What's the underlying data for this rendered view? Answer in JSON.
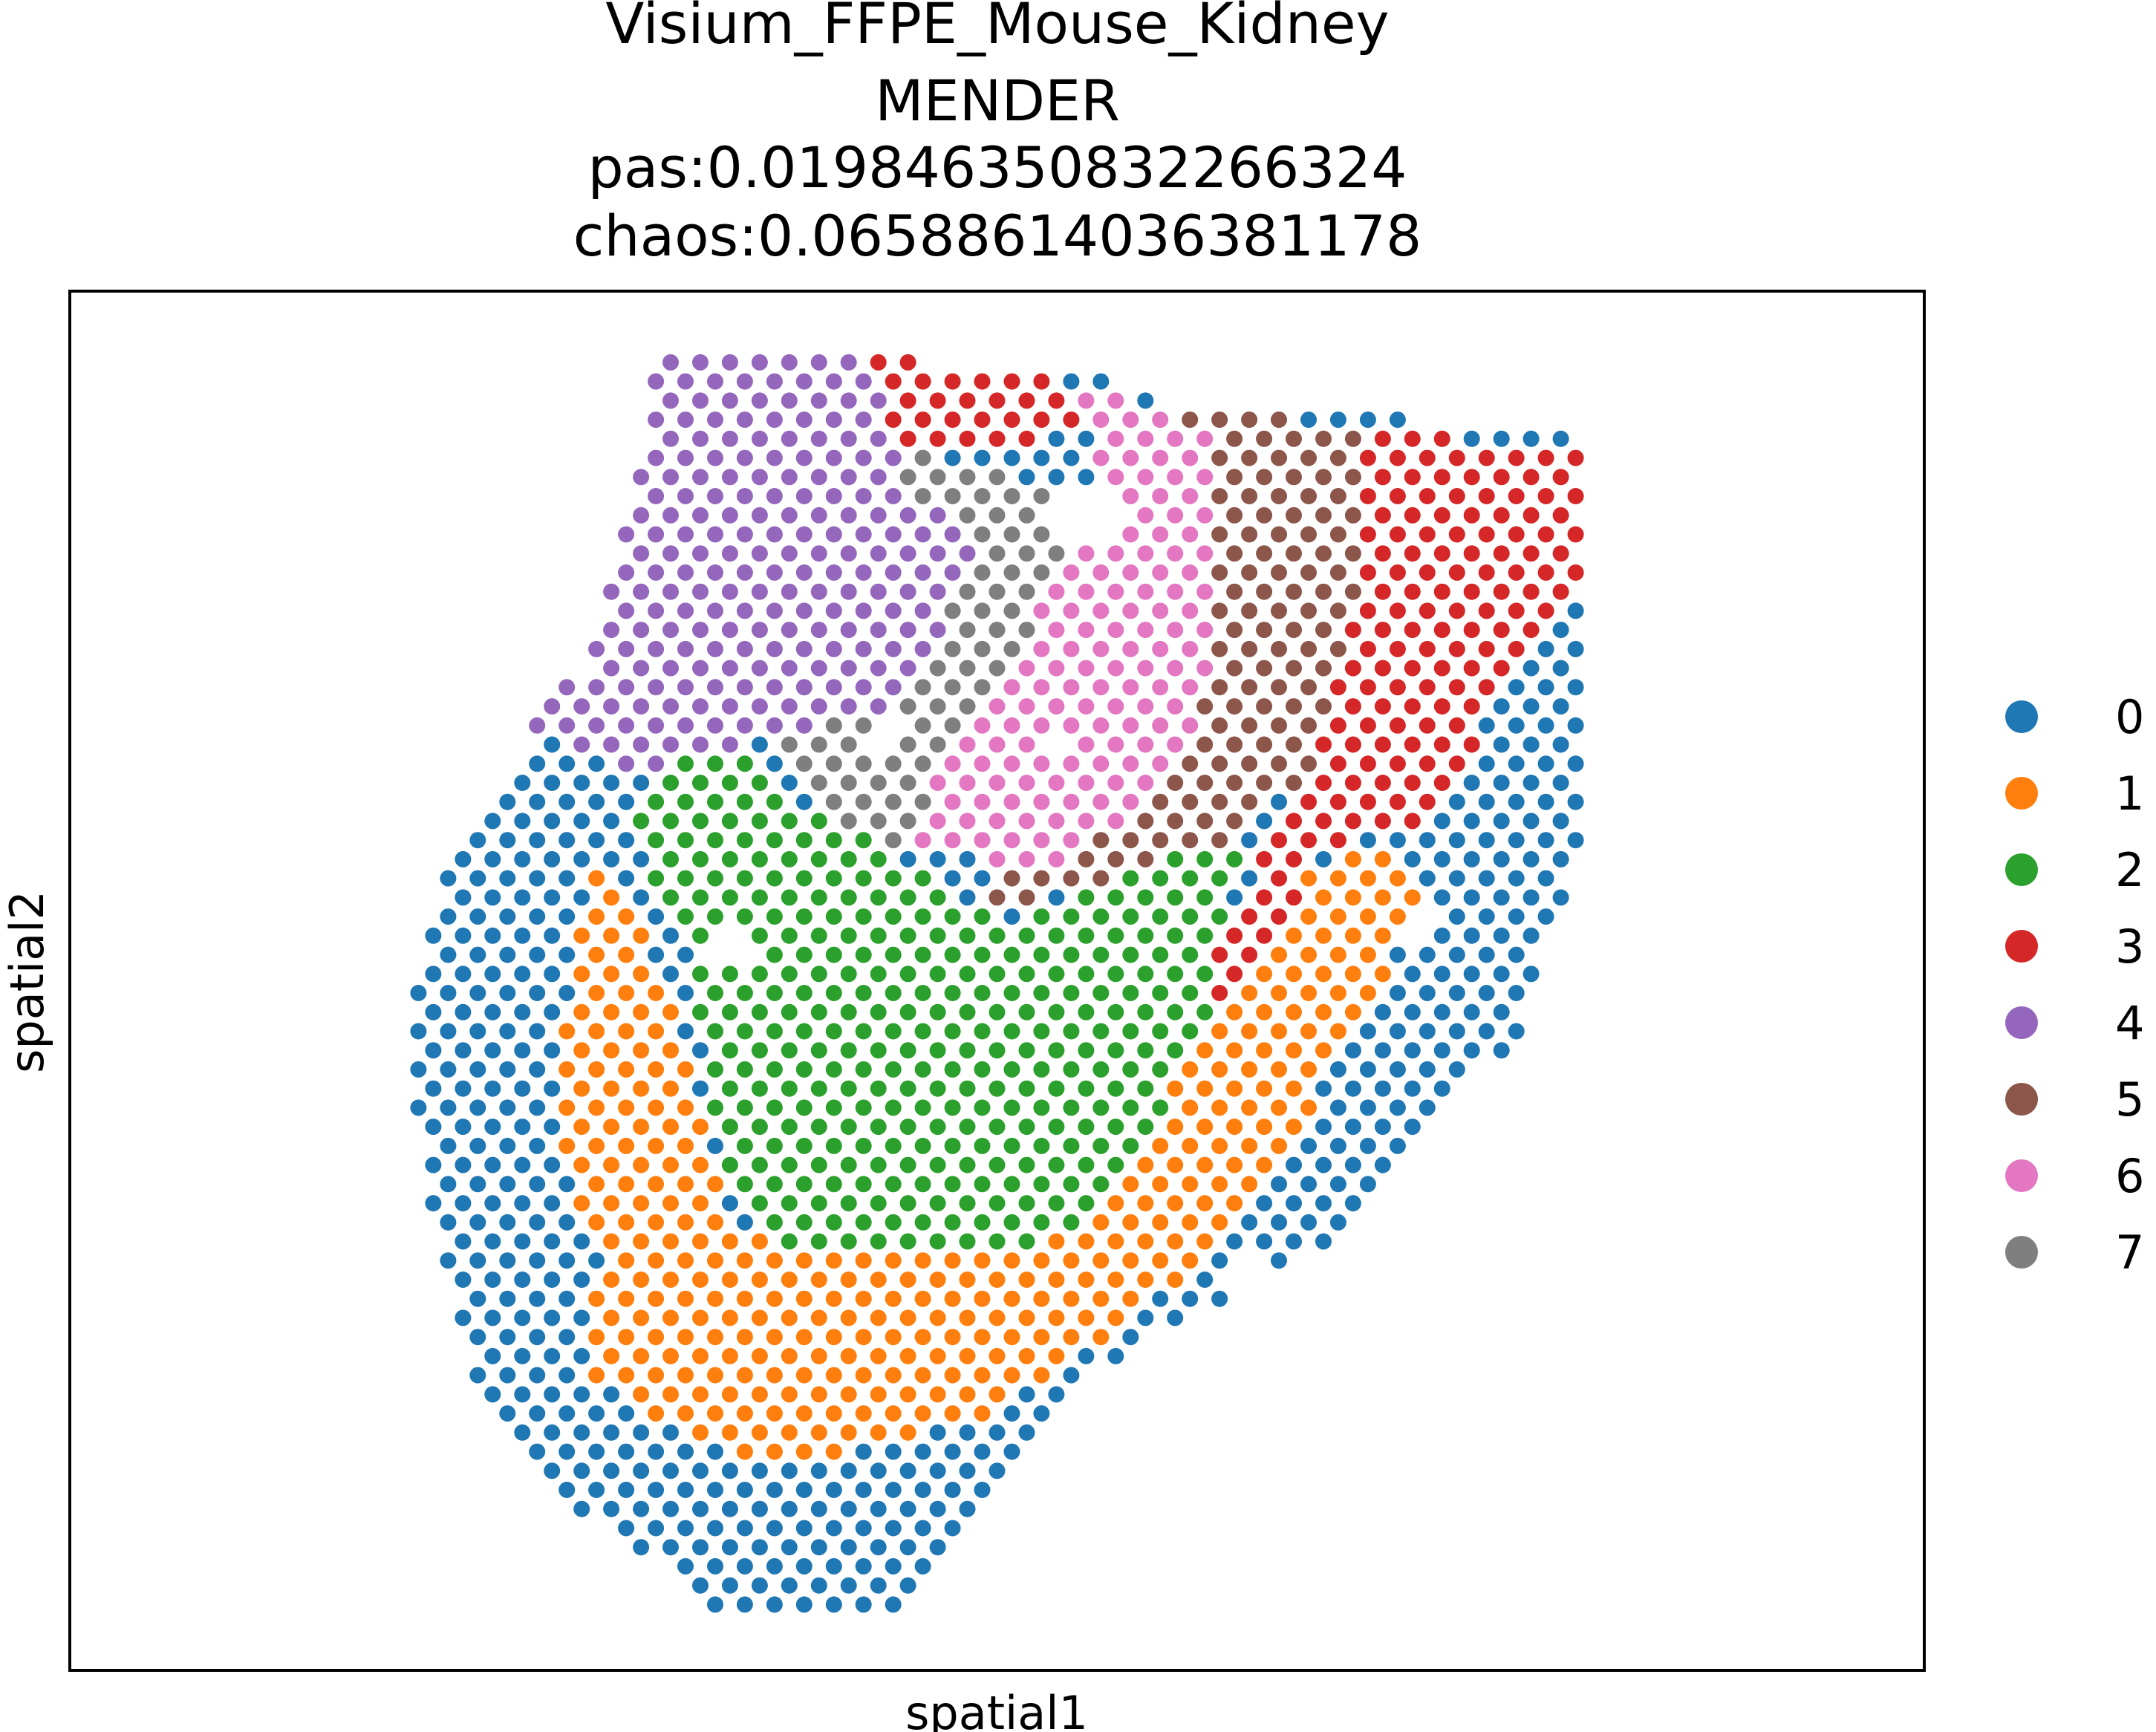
{
  "chart_data": {
    "type": "scatter",
    "title_lines": [
      "Visium_FFPE_Mouse_Kidney",
      "MENDER",
      "pas:0.019846350832266324",
      "chaos:0.06588614036381178"
    ],
    "xlabel": "spatial1",
    "ylabel": "spatial2",
    "xlim": [
      0,
      100
    ],
    "ylim": [
      0,
      100
    ],
    "grid": false,
    "legend_position": "right",
    "point_spacing": 1.6,
    "legend": [
      {
        "label": "0",
        "color": "#1f77b4"
      },
      {
        "label": "1",
        "color": "#ff7f0e"
      },
      {
        "label": "2",
        "color": "#2ca02c"
      },
      {
        "label": "3",
        "color": "#d62728"
      },
      {
        "label": "4",
        "color": "#9467bd"
      },
      {
        "label": "5",
        "color": "#8c564b"
      },
      {
        "label": "6",
        "color": "#e377c2"
      },
      {
        "label": "7",
        "color": "#7f7f7f"
      }
    ],
    "regions": {
      "tissue_outline": [
        [
          31.6,
          96.0
        ],
        [
          42.0,
          96.0
        ],
        [
          50.0,
          94.0
        ],
        [
          56.0,
          94.0
        ],
        [
          59.0,
          92.0
        ],
        [
          80.0,
          90.0
        ],
        [
          81.5,
          90.0
        ],
        [
          81.5,
          60.0
        ],
        [
          78.0,
          46.0
        ],
        [
          68.0,
          31.0
        ],
        [
          54.0,
          21.0
        ],
        [
          44.0,
          3.5
        ],
        [
          35.0,
          4.5
        ],
        [
          28.0,
          11.0
        ],
        [
          22.0,
          20.0
        ],
        [
          19.0,
          34.0
        ],
        [
          18.5,
          48.0
        ],
        [
          20.5,
          60.0
        ],
        [
          25.0,
          66.0
        ],
        [
          24.5,
          70.0
        ],
        [
          28.0,
          73.0
        ],
        [
          29.5,
          80.0
        ],
        [
          31.0,
          88.0
        ]
      ],
      "spatial_domains": [
        {
          "domain": 4,
          "polygon": [
            [
              31.0,
              97.0
            ],
            [
              42.0,
              97.0
            ],
            [
              44.0,
              91.0
            ],
            [
              45.0,
              86.0
            ],
            [
              49.0,
              82.0
            ],
            [
              45.0,
              70.0
            ],
            [
              31.0,
              65.0
            ],
            [
              24.0,
              68.0
            ],
            [
              26.0,
              74.0
            ],
            [
              29.0,
              80.0
            ],
            [
              30.5,
              88.0
            ]
          ]
        },
        {
          "domain": 3,
          "polygon": [
            [
              42.5,
              97.0
            ],
            [
              53.0,
              95.0
            ],
            [
              55.0,
              91.0
            ],
            [
              51.5,
              88.5
            ],
            [
              44.0,
              88.5
            ]
          ]
        },
        {
          "domain": 6,
          "polygon": [
            [
              54.0,
              93.0
            ],
            [
              62.0,
              90.0
            ],
            [
              62.0,
              83.0
            ],
            [
              61.0,
              69.0
            ],
            [
              58.0,
              62.0
            ],
            [
              52.0,
              58.0
            ],
            [
              45.5,
              60.0
            ],
            [
              47.5,
              68.0
            ],
            [
              52.0,
              76.0
            ],
            [
              56.0,
              86.0
            ]
          ]
        },
        {
          "domain": 5,
          "polygon": [
            [
              57.0,
              92.0
            ],
            [
              70.0,
              90.0
            ],
            [
              70.0,
              80.0
            ],
            [
              68.5,
              74.0
            ],
            [
              67.0,
              66.0
            ],
            [
              64.0,
              61.0
            ],
            [
              57.0,
              58.0
            ],
            [
              49.0,
              54.0
            ],
            [
              50.5,
              58.0
            ],
            [
              55.0,
              62.0
            ],
            [
              59.0,
              70.0
            ],
            [
              61.0,
              82.0
            ],
            [
              61.5,
              89.0
            ]
          ]
        },
        {
          "domain": 3,
          "polygon": [
            [
              70.0,
              90.0
            ],
            [
              81.5,
              88.5
            ],
            [
              81.5,
              80.0
            ],
            [
              78.0,
              73.0
            ],
            [
              74.0,
              62.0
            ],
            [
              68.0,
              60.0
            ],
            [
              66.0,
              56.0
            ],
            [
              62.0,
              49.0
            ],
            [
              61.0,
              51.0
            ],
            [
              64.0,
              58.0
            ],
            [
              67.0,
              66.0
            ],
            [
              68.5,
              74.0
            ],
            [
              70.0,
              82.0
            ]
          ]
        },
        {
          "domain": 0,
          "polygon": [
            [
              81.5,
              82.0
            ],
            [
              77.0,
              71.0
            ],
            [
              74.5,
              61.0
            ],
            [
              71.0,
              50.0
            ],
            [
              64.0,
              34.0
            ],
            [
              55.0,
              22.0
            ],
            [
              46.0,
              16.0
            ],
            [
              36.0,
              15.0
            ],
            [
              28.0,
              21.0
            ],
            [
              28.5,
              30.0
            ],
            [
              26.0,
              40.0
            ],
            [
              27.0,
              50.0
            ],
            [
              28.0,
              59.0
            ],
            [
              32.0,
              66.0
            ],
            [
              26.0,
              70.0
            ],
            [
              21.0,
              66.0
            ],
            [
              18.0,
              50.0
            ],
            [
              18.5,
              34.0
            ],
            [
              21.5,
              20.0
            ],
            [
              28.0,
              11.0
            ],
            [
              35.0,
              4.5
            ],
            [
              44.0,
              3.5
            ],
            [
              54.0,
              21.0
            ],
            [
              68.0,
              31.0
            ],
            [
              78.0,
              46.0
            ],
            [
              81.5,
              60.0
            ]
          ]
        },
        {
          "domain": 2,
          "polygon": [
            [
              30.5,
              64.0
            ],
            [
              33.0,
              68.0
            ],
            [
              36.0,
              67.0
            ],
            [
              40.0,
              62.0
            ],
            [
              45.0,
              59.0
            ],
            [
              50.0,
              54.0
            ],
            [
              57.0,
              58.0
            ],
            [
              63.0,
              60.0
            ],
            [
              61.0,
              46.0
            ],
            [
              57.0,
              36.0
            ],
            [
              53.0,
              31.0
            ],
            [
              46.0,
              31.0
            ],
            [
              40.0,
              30.0
            ],
            [
              35.5,
              34.0
            ],
            [
              34.0,
              46.0
            ],
            [
              33.0,
              54.0
            ],
            [
              31.0,
              58.0
            ]
          ]
        },
        {
          "domain": 7,
          "polygon": [
            [
              44.0,
              89.0
            ],
            [
              50.0,
              87.0
            ],
            [
              53.5,
              85.0
            ],
            [
              55.0,
              78.0
            ],
            [
              52.0,
              72.0
            ],
            [
              47.5,
              64.0
            ],
            [
              45.0,
              59.0
            ],
            [
              40.5,
              62.0
            ],
            [
              38.0,
              68.0
            ],
            [
              42.0,
              72.0
            ],
            [
              45.0,
              80.0
            ]
          ]
        },
        {
          "domain": 1,
          "polygon": [
            [
              23.5,
              59.0
            ],
            [
              28.0,
              59.5
            ],
            [
              31.0,
              54.0
            ],
            [
              33.0,
              46.0
            ],
            [
              35.5,
              33.0
            ],
            [
              40.0,
              30.0
            ],
            [
              46.0,
              31.0
            ],
            [
              53.0,
              32.0
            ],
            [
              56.5,
              35.0
            ],
            [
              60.0,
              44.0
            ],
            [
              62.0,
              48.0
            ],
            [
              65.0,
              56.0
            ],
            [
              69.0,
              60.0
            ],
            [
              73.0,
              58.0
            ],
            [
              70.5,
              48.0
            ],
            [
              65.5,
              34.0
            ],
            [
              56.0,
              24.0
            ],
            [
              49.0,
              18.0
            ],
            [
              36.0,
              14.0
            ],
            [
              28.5,
              20.0
            ],
            [
              25.0,
              27.0
            ],
            [
              22.0,
              36.0
            ],
            [
              21.5,
              48.0
            ]
          ]
        }
      ],
      "holes": [
        [
          55.0,
          84.0,
          2.2
        ],
        [
          35.5,
          52.5,
          1.6
        ],
        [
          72.5,
          53.5,
          1.4
        ],
        [
          63.5,
          28.5,
          1.3
        ],
        [
          56.0,
          20.5,
          1.2
        ],
        [
          44.0,
          68.0,
          1.0
        ],
        [
          53.5,
          67.0,
          0.9
        ]
      ]
    }
  }
}
